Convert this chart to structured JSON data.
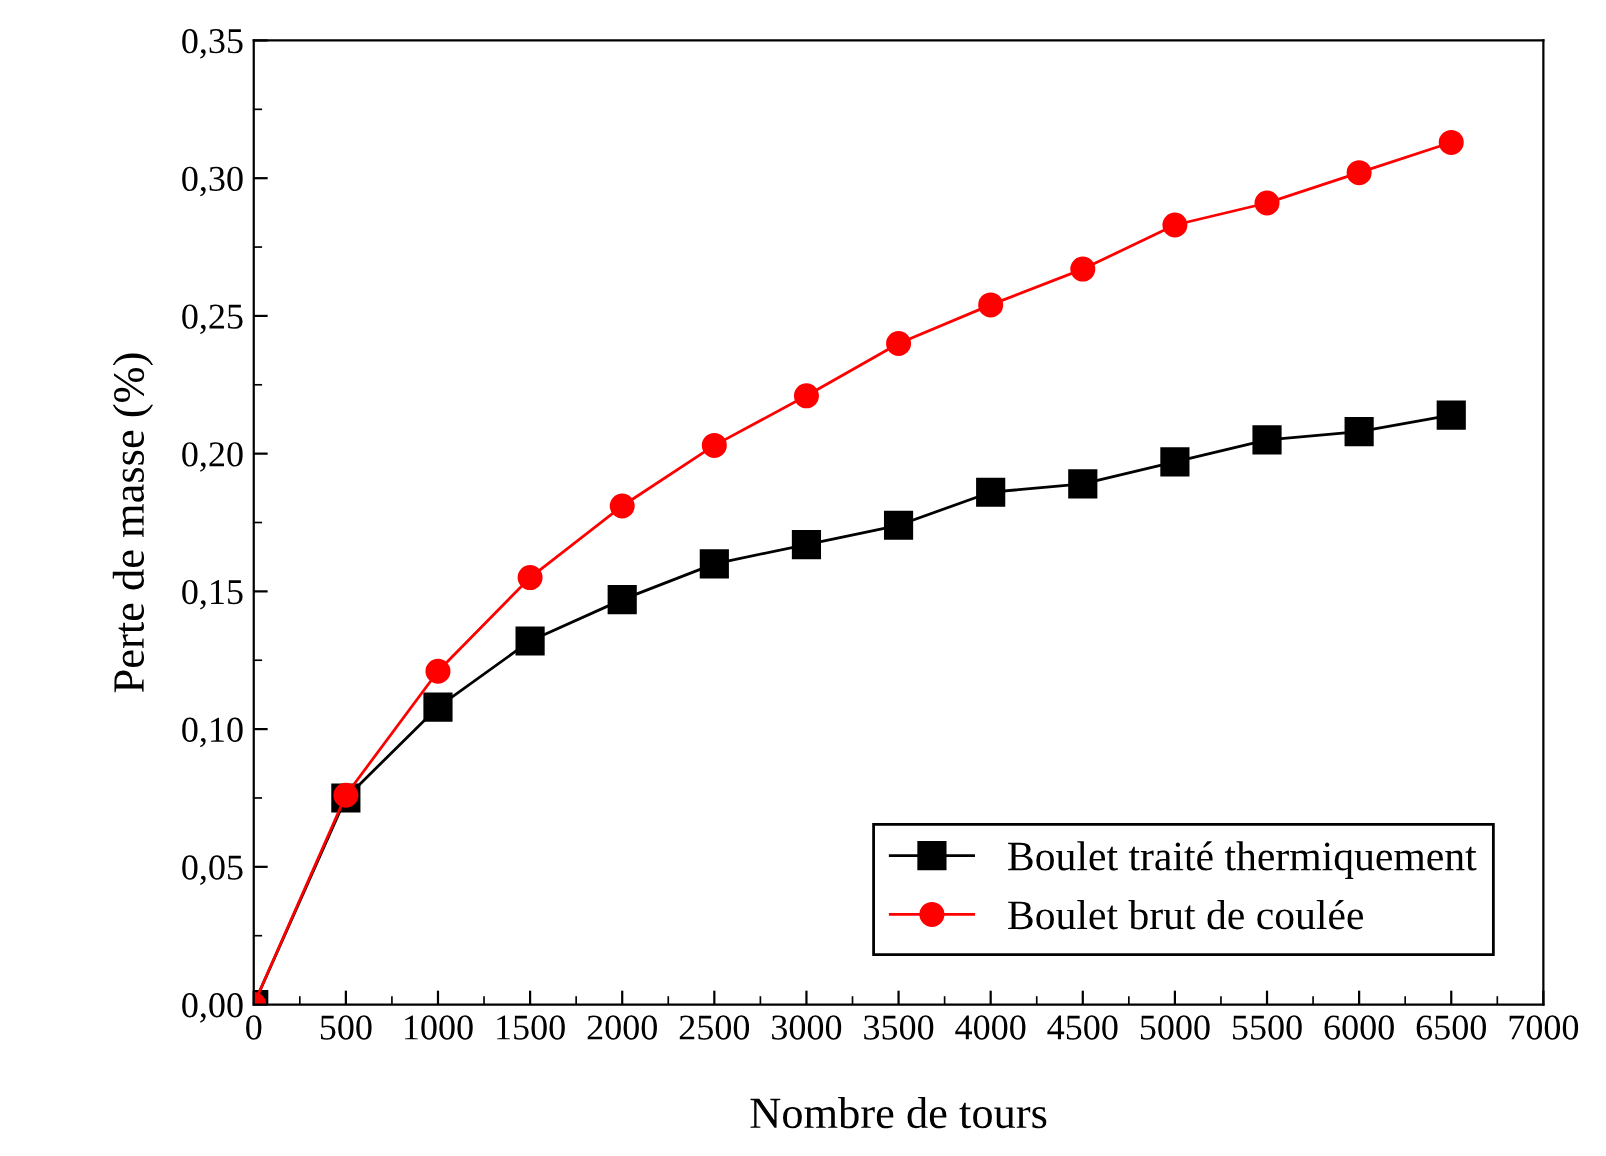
{
  "chart_data": {
    "type": "line",
    "xlabel": "Nombre de tours",
    "ylabel": "Perte de masse (%)",
    "x": [
      0,
      500,
      1000,
      1500,
      2000,
      2500,
      3000,
      3500,
      4000,
      4500,
      5000,
      5500,
      6000,
      6500
    ],
    "series": [
      {
        "name": "Boulet traité thermiquement",
        "color": "#000000",
        "marker": "square",
        "values": [
          0,
          0.075,
          0.108,
          0.132,
          0.147,
          0.16,
          0.167,
          0.174,
          0.186,
          0.189,
          0.197,
          0.205,
          0.208,
          0.214
        ]
      },
      {
        "name": "Boulet brut de coulée",
        "color": "#ff0000",
        "marker": "circle",
        "values": [
          0,
          0.076,
          0.121,
          0.155,
          0.181,
          0.203,
          0.221,
          0.24,
          0.254,
          0.267,
          0.283,
          0.291,
          0.302,
          0.313
        ]
      }
    ],
    "xlim": [
      0,
      7000
    ],
    "xticks": [
      0,
      500,
      1000,
      1500,
      2000,
      2500,
      3000,
      3500,
      4000,
      4500,
      5000,
      5500,
      6000,
      6500,
      7000
    ],
    "ylim": [
      0,
      0.35
    ],
    "yticks": [
      {
        "value": 0,
        "label": "0,00"
      },
      {
        "value": 0.05,
        "label": "0,05"
      },
      {
        "value": 0.1,
        "label": "0,10"
      },
      {
        "value": 0.15,
        "label": "0,15"
      },
      {
        "value": 0.2,
        "label": "0,20"
      },
      {
        "value": 0.25,
        "label": "0,25"
      },
      {
        "value": 0.3,
        "label": "0,30"
      },
      {
        "value": 0.35,
        "label": "0,35"
      }
    ],
    "legend": "bottom right",
    "line_style": "solid",
    "grid": false
  }
}
